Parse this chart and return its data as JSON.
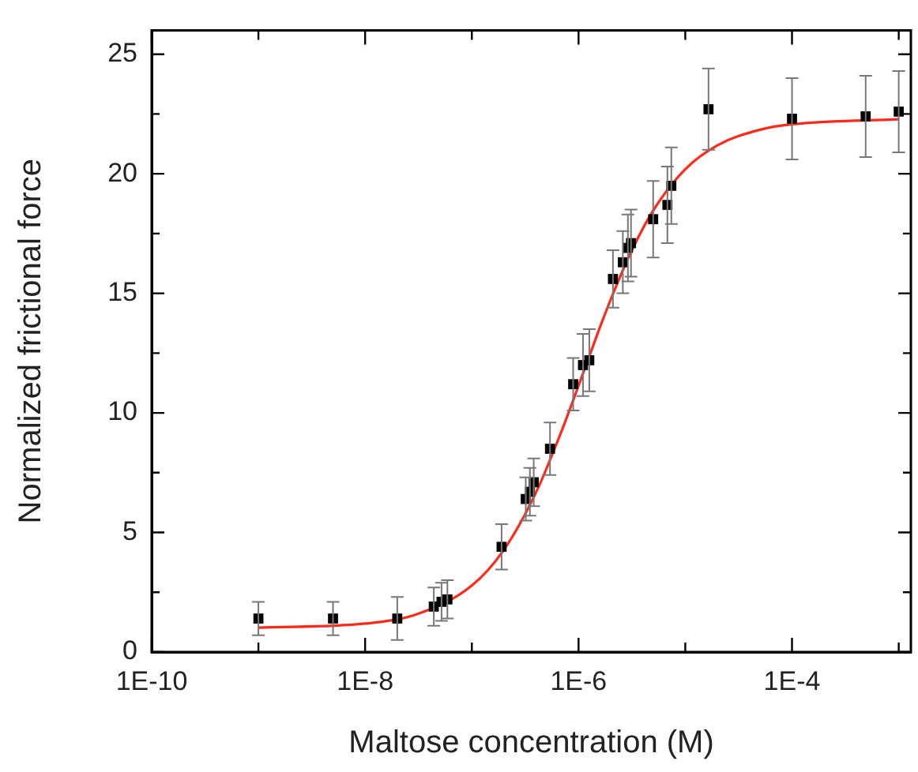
{
  "chart_data": {
    "type": "scatter",
    "xlabel": "Maltose concentration (M)",
    "ylabel": "Normalized frictional force",
    "log": "x",
    "grid": false,
    "legend": false,
    "marker": "square",
    "xlim": [
      1e-10,
      0.0013
    ],
    "xticks": [
      {
        "value": 1e-10,
        "label": "1E-10"
      },
      {
        "value": 1e-09,
        "label": null
      },
      {
        "value": 1e-08,
        "label": "1E-8"
      },
      {
        "value": 1e-07,
        "label": null
      },
      {
        "value": 1e-06,
        "label": "1E-6"
      },
      {
        "value": 1e-05,
        "label": null
      },
      {
        "value": 0.0001,
        "label": "1E-4"
      },
      {
        "value": 0.001,
        "label": null
      }
    ],
    "ylim": [
      0,
      26
    ],
    "yticks": [
      0,
      {
        "value": 2.5,
        "label": null
      },
      5,
      {
        "value": 7.5,
        "label": null
      },
      10,
      {
        "value": 12.5,
        "label": null
      },
      15,
      {
        "value": 17.5,
        "label": null
      },
      20,
      {
        "value": 22.5,
        "label": null
      },
      25
    ],
    "series": [
      {
        "type": "scatter",
        "color": "#000000",
        "x": [
          1e-09,
          5e-09,
          2e-08,
          4.4e-08,
          5.2e-08,
          5.9e-08,
          1.9e-07,
          3.2e-07,
          3.5e-07,
          3.8e-07,
          5.4e-07,
          8.9e-07,
          1.1e-06,
          1.26e-06,
          2.1e-06,
          2.6e-06,
          2.9e-06,
          3.1e-06,
          5e-06,
          6.8e-06,
          7.4e-06,
          1.65e-05,
          0.0001,
          0.00049,
          0.001
        ],
        "values": [
          1.4,
          1.4,
          1.4,
          1.9,
          2.1,
          2.2,
          4.4,
          6.4,
          6.7,
          7.1,
          8.5,
          11.2,
          12.0,
          12.2,
          15.6,
          16.3,
          16.9,
          17.1,
          18.1,
          18.7,
          19.5,
          22.7,
          22.3,
          22.4,
          22.6
        ],
        "errors": [
          0.7,
          0.7,
          0.9,
          0.8,
          0.8,
          0.8,
          0.95,
          0.9,
          1.0,
          1.0,
          1.1,
          1.1,
          1.3,
          1.3,
          1.2,
          1.3,
          1.4,
          1.4,
          1.6,
          1.6,
          1.6,
          1.7,
          1.7,
          1.7,
          1.7
        ]
      },
      {
        "type": "line",
        "color": "#ff2a1a",
        "marker": "none",
        "x": [
          1e-09,
          1e-08,
          3e-08,
          1e-07,
          2e-07,
          4e-07,
          7e-07,
          1e-06,
          1.5e-06,
          2e-06,
          3e-06,
          5e-06,
          1e-05,
          2e-05,
          5e-05,
          0.0001,
          0.001
        ],
        "values": [
          1.02,
          1.19,
          1.57,
          2.78,
          4.28,
          6.68,
          9.29,
          11.14,
          13.29,
          14.74,
          16.59,
          18.46,
          20.19,
          21.19,
          21.84,
          22.07,
          22.28
        ]
      }
    ]
  }
}
